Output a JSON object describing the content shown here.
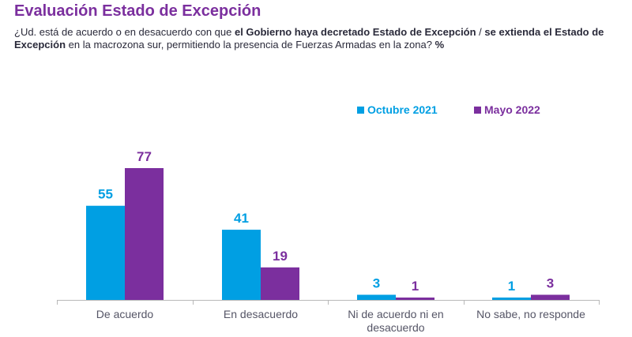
{
  "header": {
    "title": "Evaluación Estado de Excepción",
    "question_part1": "¿Ud. está de acuerdo o en desacuerdo con que ",
    "question_bold1": "el Gobierno haya decretado Estado de Excepción",
    "question_sep": " / ",
    "question_bold2": "se extienda el Estado de Excepción",
    "question_part2": " en la macrozona sur, permitiendo la presencia de Fuerzas Armadas en la zona? ",
    "question_unit": "%"
  },
  "colors": {
    "octubre": "#009fe3",
    "mayo": "#7b2f9e",
    "axis": "#b8b8b8"
  },
  "chart_data": {
    "type": "bar",
    "title": "Evaluación Estado de Excepción",
    "categories": [
      "De acuerdo",
      "En desacuerdo",
      "Ni de acuerdo ni en desacuerdo",
      "No sabe, no responde"
    ],
    "category_lines": [
      [
        "De acuerdo"
      ],
      [
        "En desacuerdo"
      ],
      [
        "Ni de acuerdo ni en",
        "desacuerdo"
      ],
      [
        "No sabe, no responde"
      ]
    ],
    "series": [
      {
        "name": "Octubre 2021",
        "values": [
          55,
          41,
          3,
          1
        ]
      },
      {
        "name": "Mayo 2022",
        "values": [
          77,
          19,
          1,
          3
        ]
      }
    ],
    "ylabel": "%",
    "ylim": [
      0,
      77
    ],
    "legend": "top-right",
    "grid": false
  }
}
